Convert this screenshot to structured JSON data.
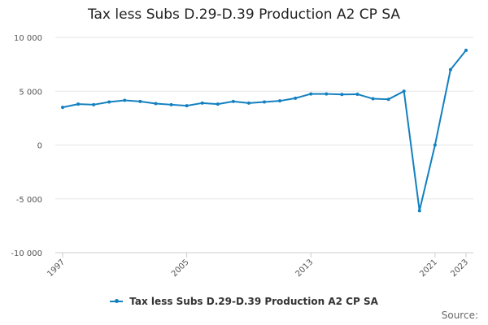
{
  "chart_data": {
    "type": "line",
    "title": "Tax less Subs D.29-D.39 Production A2 CP SA",
    "xlabel": "",
    "ylabel": "",
    "ylim": [
      -10000,
      10000
    ],
    "yticks": [
      10000,
      5000,
      0,
      -5000,
      -10000
    ],
    "ytick_labels": [
      "10 000",
      "5 000",
      "0",
      "-5 000",
      "-10 000"
    ],
    "xlim": [
      1997,
      2023
    ],
    "xticks": [
      1997,
      2005,
      2013,
      2021,
      2023
    ],
    "xtick_labels": [
      "1997",
      "2005",
      "2013",
      "2021",
      "2023"
    ],
    "grid": true,
    "legend_position": "bottom",
    "series": [
      {
        "name": "Tax less Subs D.29-D.39 Production A2 CP SA",
        "color": "#1380c0",
        "x": [
          1997,
          1998,
          1999,
          2000,
          2001,
          2002,
          2003,
          2004,
          2005,
          2006,
          2007,
          2008,
          2009,
          2010,
          2011,
          2012,
          2013,
          2014,
          2015,
          2016,
          2017,
          2018,
          2019,
          2020,
          2021,
          2022,
          2023
        ],
        "values": [
          3500,
          3800,
          3750,
          4000,
          4150,
          4050,
          3850,
          3750,
          3650,
          3900,
          3800,
          4050,
          3900,
          4000,
          4100,
          4350,
          4750,
          4750,
          4700,
          4720,
          4300,
          4250,
          5000,
          -6100,
          0,
          7000,
          8800
        ]
      }
    ]
  },
  "source_label": "Source:"
}
